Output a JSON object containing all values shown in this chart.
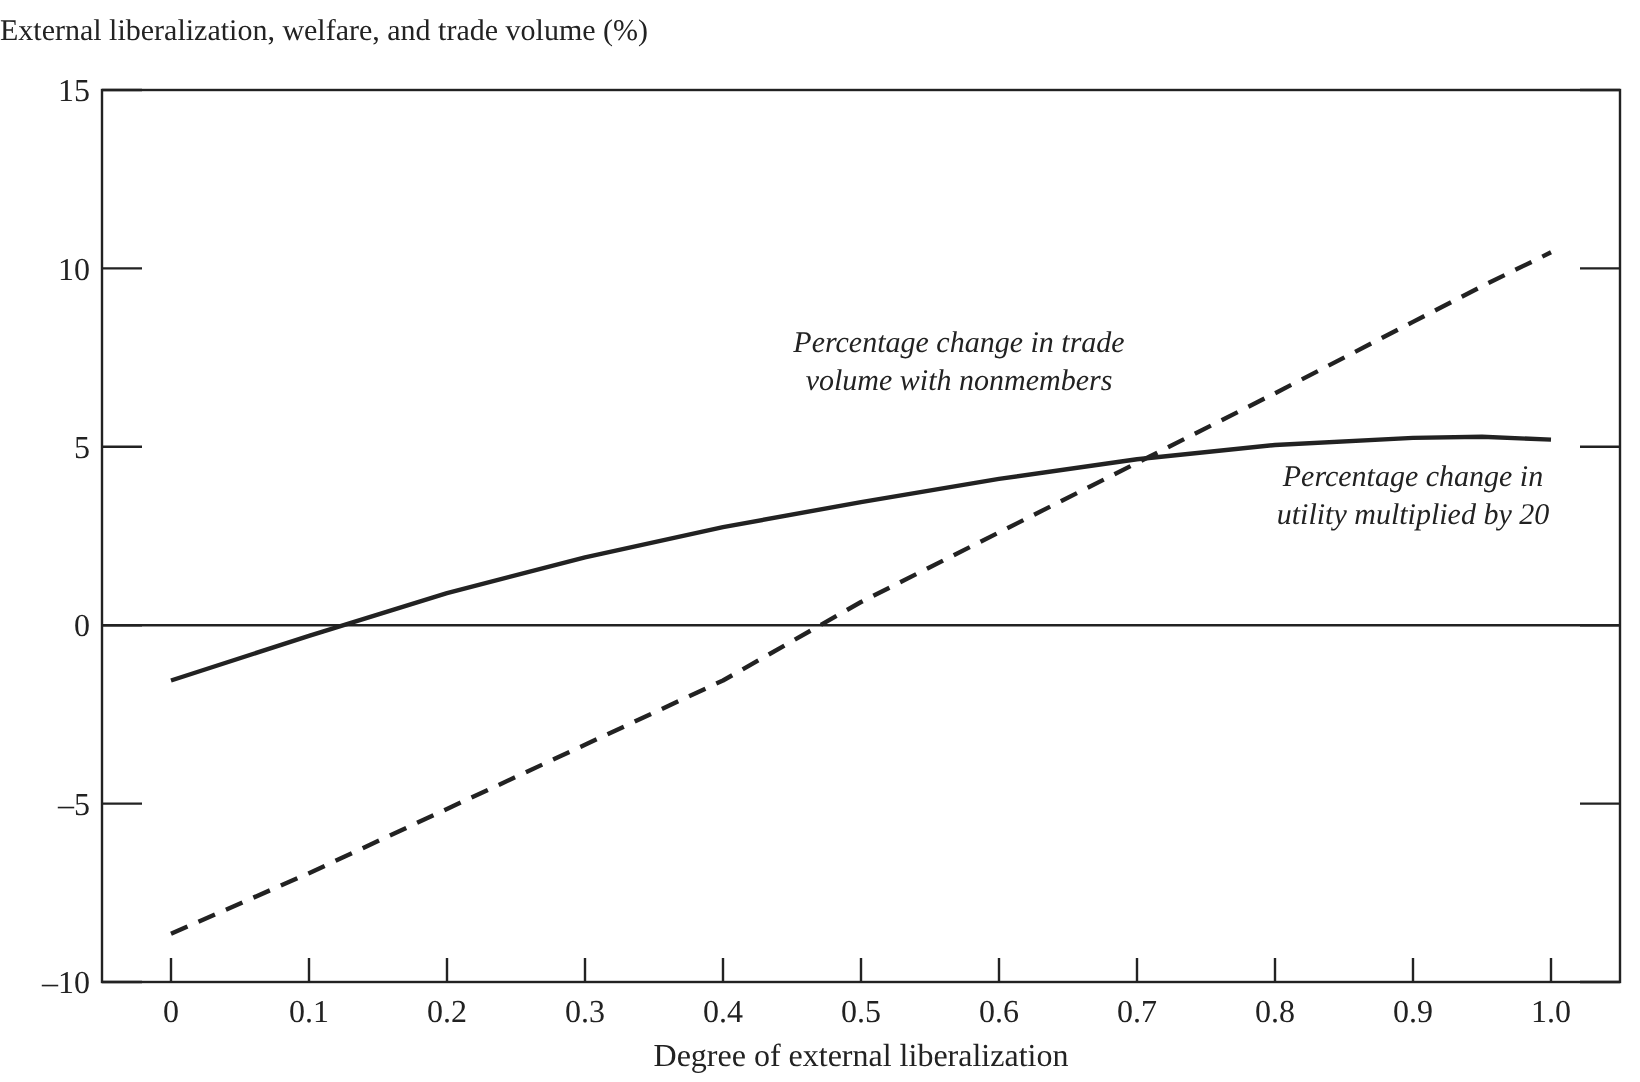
{
  "chart_data": {
    "type": "line",
    "ylabel": "External liberalization, welfare, and trade volume (%)",
    "xlabel": "Degree of external liberalization",
    "x": [
      0,
      0.1,
      0.2,
      0.3,
      0.4,
      0.5,
      0.6,
      0.7,
      0.8,
      0.9,
      0.95,
      1
    ],
    "series": [
      {
        "name": "Percentage change in trade volume with nonmembers",
        "color": "#222222",
        "line_style": "dashed",
        "values": [
          -8.65,
          -6.95,
          -5.15,
          -3.35,
          -1.55,
          0.65,
          2.6,
          4.55,
          6.5,
          8.5,
          9.5,
          10.45
        ]
      },
      {
        "name": "Percentage change in utility multiplied by 20",
        "color": "#222222",
        "line_style": "solid",
        "values": [
          -1.55,
          -0.3,
          0.9,
          1.9,
          2.75,
          3.45,
          4.1,
          4.65,
          5.05,
          5.25,
          5.28,
          5.2
        ]
      }
    ],
    "xlim": [
      -0.05,
      1.05
    ],
    "ylim": [
      -10,
      15
    ],
    "xticks": [
      0,
      0.1,
      0.2,
      0.3,
      0.4,
      0.5,
      0.6,
      0.7,
      0.8,
      0.9,
      {
        "value": 1,
        "label": "1.0"
      }
    ],
    "yticks": [
      {
        "value": -10,
        "label": "–10"
      },
      {
        "value": -5,
        "label": "–5"
      },
      0,
      5,
      10,
      15
    ],
    "ref_lines": [
      {
        "axis": "y",
        "value": 0,
        "label": null
      }
    ],
    "grid": false,
    "marker": "none"
  }
}
